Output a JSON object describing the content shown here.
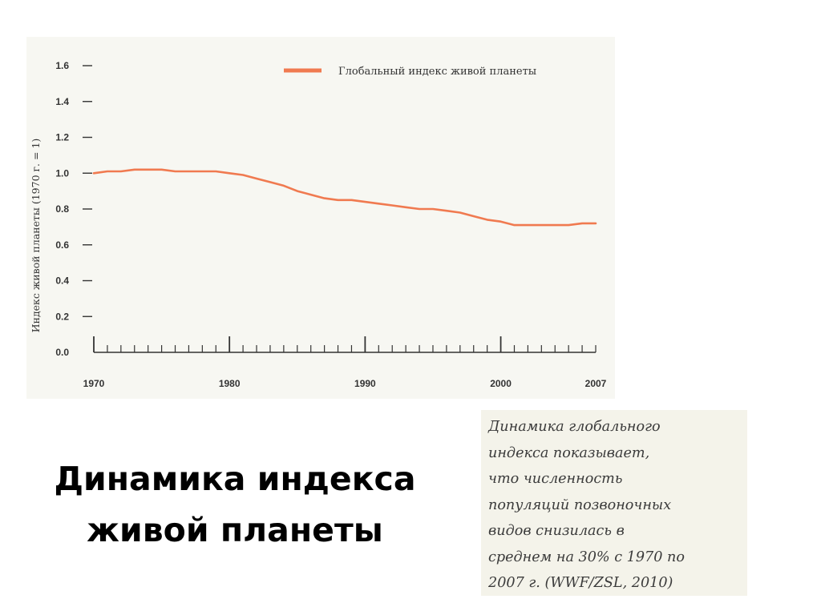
{
  "chart_data": {
    "type": "line",
    "ylabel": "Индекс живой планеты  (1970 г. = 1)",
    "xlabel": "",
    "ylim": [
      0,
      1.6
    ],
    "xlim": [
      1970,
      2007
    ],
    "y_ticks": [
      "0.0",
      "0.2",
      "0.4",
      "0.6",
      "0.8",
      "1.0",
      "1.2",
      "1.4",
      "1.6"
    ],
    "x_tick_labels": [
      "1970",
      "1980",
      "1990",
      "2000",
      "2007"
    ],
    "x_label_years": [
      1970,
      1980,
      1990,
      2000,
      2007
    ],
    "x_major_ticks": [
      1970,
      1980,
      1990,
      2000
    ],
    "legend_placement": "top-right",
    "grid": false,
    "series": [
      {
        "name": "Глобальный индекс живой планеты",
        "color": "#f07a50",
        "x": [
          1970,
          1971,
          1972,
          1973,
          1974,
          1975,
          1976,
          1977,
          1978,
          1979,
          1980,
          1981,
          1982,
          1983,
          1984,
          1985,
          1986,
          1987,
          1988,
          1989,
          1990,
          1991,
          1992,
          1993,
          1994,
          1995,
          1996,
          1997,
          1998,
          1999,
          2000,
          2001,
          2002,
          2003,
          2004,
          2005,
          2006,
          2007
        ],
        "values": [
          1.0,
          1.01,
          1.01,
          1.02,
          1.02,
          1.02,
          1.01,
          1.01,
          1.01,
          1.01,
          1.0,
          0.99,
          0.97,
          0.95,
          0.93,
          0.9,
          0.88,
          0.86,
          0.85,
          0.85,
          0.84,
          0.83,
          0.82,
          0.81,
          0.8,
          0.8,
          0.79,
          0.78,
          0.76,
          0.74,
          0.73,
          0.71,
          0.71,
          0.71,
          0.71,
          0.71,
          0.72,
          0.72
        ]
      }
    ]
  },
  "slide": {
    "title": "Динамика индекса живой планеты",
    "caption": "Динамика глобального\nиндекса показывает,\nчто численность\nпопуляций позвоночных\nвидов снизилась в\nсреднем на 30% с 1970 по\n2007 г. (WWF/ZSL, 2010)"
  }
}
